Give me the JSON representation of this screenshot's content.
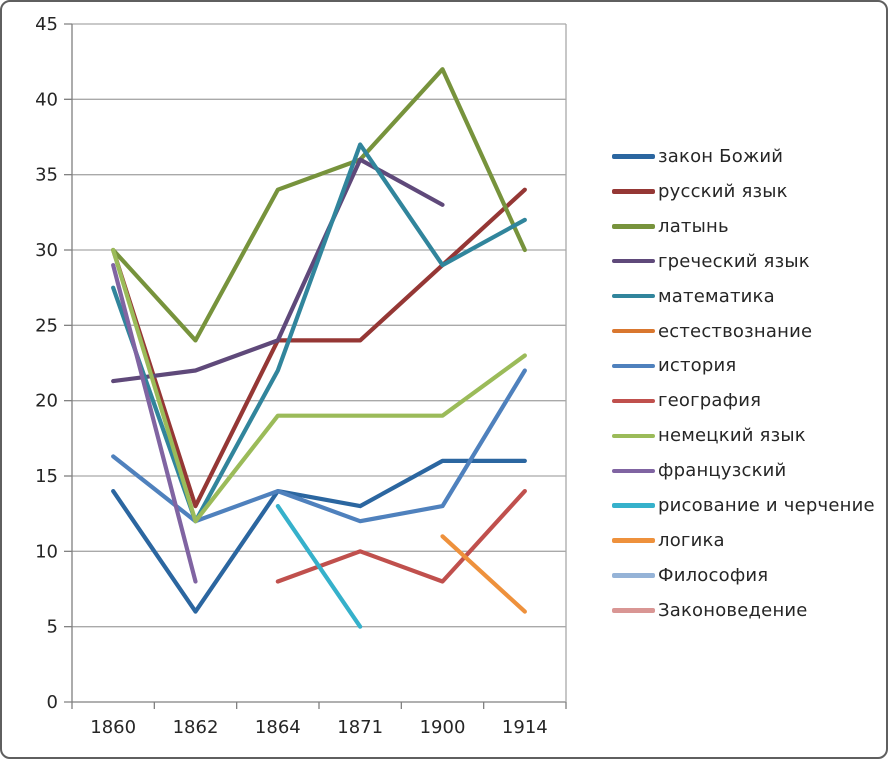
{
  "figure": {
    "background": "#ffffff",
    "border_color": "#5f5f5f",
    "axis_color": "#808080",
    "grid_color": "#a9a9a9",
    "tick_text_color": "#262626"
  },
  "chart_data": {
    "type": "line",
    "title": "",
    "xlabel": "",
    "ylabel": "",
    "x_categories": [
      "1860",
      "1862",
      "1864",
      "1871",
      "1900",
      "1914"
    ],
    "ylim": [
      0,
      45
    ],
    "y_ticks": [
      0,
      5,
      10,
      15,
      20,
      25,
      30,
      35,
      40,
      45
    ],
    "grid": "horizontal",
    "legend_position": "right",
    "line_width": 4.2,
    "series": [
      {
        "name": "закон Божий",
        "color": "#2B66A0",
        "values": [
          14,
          6,
          14,
          13,
          16,
          16
        ]
      },
      {
        "name": "русский язык",
        "color": "#953735",
        "values": [
          30,
          13,
          24,
          24,
          29,
          34
        ]
      },
      {
        "name": "латынь",
        "color": "#77933C",
        "values": [
          30,
          24,
          34,
          36,
          42,
          30
        ]
      },
      {
        "name": "греческий язык",
        "color": "#5F497A",
        "values": [
          21.3,
          22,
          24,
          36,
          33,
          null
        ]
      },
      {
        "name": "математика",
        "color": "#31859C",
        "values": [
          27.5,
          12,
          22,
          37,
          29,
          32
        ]
      },
      {
        "name": "естествознание",
        "color": "#D9772F",
        "values": [
          null,
          null,
          null,
          null,
          null,
          null
        ]
      },
      {
        "name": "история",
        "color": "#4F81BD",
        "values": [
          16.3,
          12,
          14,
          12,
          13,
          22
        ]
      },
      {
        "name": "география",
        "color": "#C0504D",
        "values": [
          null,
          null,
          8,
          10,
          8,
          14
        ]
      },
      {
        "name": "немецкий язык",
        "color": "#9BBB59",
        "values": [
          30,
          12,
          19,
          19,
          19,
          23
        ]
      },
      {
        "name": "французский",
        "color": "#8064A2",
        "values": [
          29,
          8,
          null,
          null,
          null,
          null
        ]
      },
      {
        "name": "рисование и черчение",
        "color": "#36B1CB",
        "values": [
          null,
          null,
          13,
          5,
          null,
          null
        ]
      },
      {
        "name": "логика",
        "color": "#EE913C",
        "values": [
          null,
          null,
          null,
          null,
          11,
          6
        ]
      },
      {
        "name": "Философия",
        "color": "#95B3D7",
        "values": [
          null,
          null,
          null,
          null,
          null,
          null
        ]
      },
      {
        "name": "Законоведение",
        "color": "#D99694",
        "values": [
          null,
          null,
          null,
          null,
          null,
          null
        ]
      }
    ]
  }
}
